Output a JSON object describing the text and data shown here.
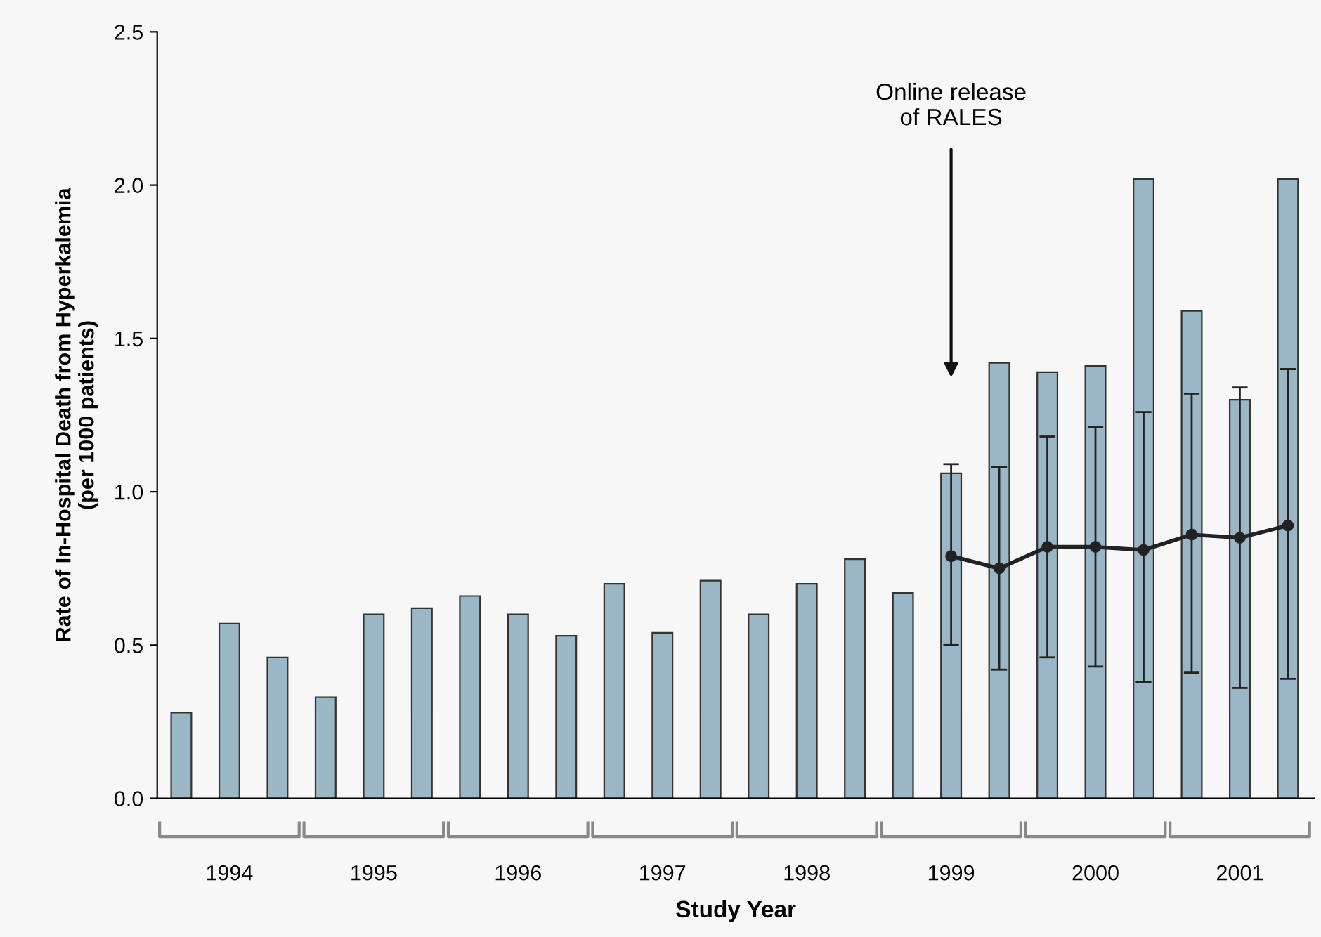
{
  "chart_data": {
    "type": "bar",
    "xlabel": "Study Year",
    "ylabel": "Rate of In-Hospital Death from Hyperkalemia\n(per 1000 patients)",
    "categories": [
      null,
      "1994",
      null,
      null,
      "1995",
      null,
      null,
      "1996",
      null,
      null,
      "1997",
      null,
      null,
      "1998",
      null,
      null,
      "1999",
      null,
      null,
      "2000",
      null,
      null,
      "2001",
      null
    ],
    "series": [
      {
        "color": "#9bb7c6",
        "values": [
          0.28,
          0.57,
          0.46,
          0.33,
          0.6,
          0.62,
          0.66,
          0.6,
          0.53,
          0.7,
          0.54,
          0.71,
          0.6,
          0.7,
          0.78,
          0.67,
          1.06,
          1.42,
          1.39,
          1.41,
          2.02,
          1.59,
          1.3,
          2.02
        ]
      },
      {
        "type": "line",
        "color": "#222222",
        "marker": "circle",
        "line_style": "solid",
        "values": [
          null,
          null,
          null,
          null,
          null,
          null,
          null,
          null,
          null,
          null,
          null,
          null,
          null,
          null,
          null,
          null,
          0.79,
          0.75,
          0.82,
          0.82,
          0.81,
          0.86,
          0.85,
          0.89
        ],
        "errors": [
          null,
          null,
          null,
          null,
          null,
          null,
          null,
          null,
          null,
          null,
          null,
          null,
          null,
          null,
          null,
          null,
          [
            0.5,
            1.09
          ],
          [
            0.42,
            1.08
          ],
          [
            0.46,
            1.18
          ],
          [
            0.43,
            1.21
          ],
          [
            0.38,
            1.26
          ],
          [
            0.41,
            1.32
          ],
          [
            0.36,
            1.34
          ],
          [
            0.39,
            1.4
          ]
        ]
      }
    ],
    "ylim": [
      0,
      2.5
    ],
    "yticks": [
      {
        "value": 0,
        "label": "0.0"
      },
      {
        "value": 0.5,
        "label": "0.5"
      },
      {
        "value": 1,
        "label": "1.0"
      },
      {
        "value": 1.5,
        "label": "1.5"
      },
      {
        "value": 2,
        "label": "2.0"
      },
      {
        "value": 2.5,
        "label": "2.5"
      }
    ],
    "grid": false,
    "annotations": [
      "Online release\nof RALES"
    ]
  }
}
